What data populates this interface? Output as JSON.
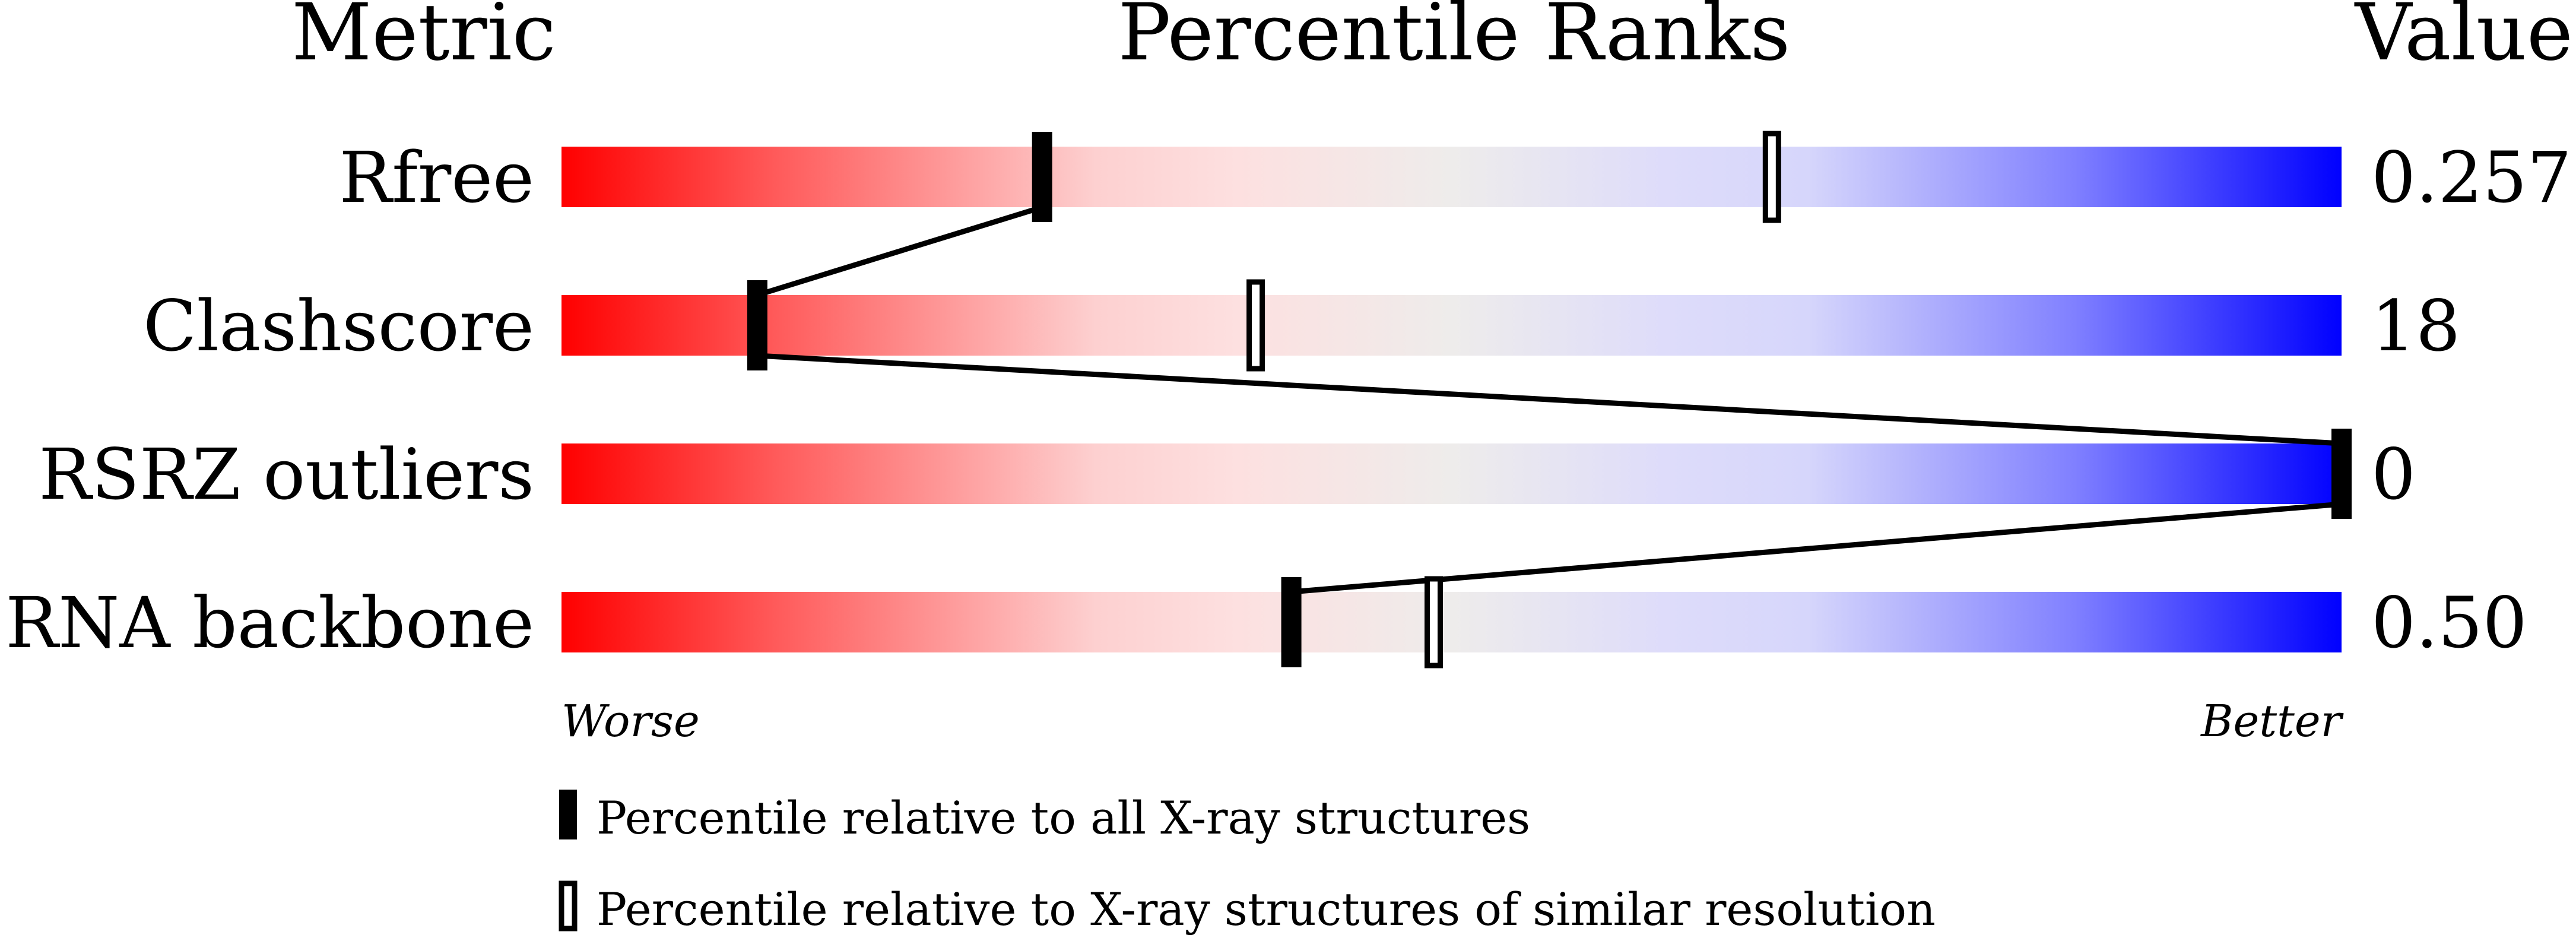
{
  "chart_data": {
    "type": "percentile-slider",
    "headers": {
      "metric": "Metric",
      "ranks": "Percentile Ranks",
      "value": "Value"
    },
    "xlim": [
      0,
      100
    ],
    "metrics": [
      {
        "name": "Rfree",
        "value": "0.257",
        "percentile_all": 27,
        "percentile_similar": 68
      },
      {
        "name": "Clashscore",
        "value": "18",
        "percentile_all": 11,
        "percentile_similar": 39
      },
      {
        "name": "RSRZ outliers",
        "value": "0",
        "percentile_all": 100,
        "percentile_similar": null
      },
      {
        "name": "RNA backbone",
        "value": "0.50",
        "percentile_all": 41,
        "percentile_similar": 49
      }
    ],
    "scale_labels": {
      "left": "Worse",
      "right": "Better"
    },
    "legend": [
      {
        "marker": "filled",
        "label": "Percentile relative to all X-ray structures"
      },
      {
        "marker": "open",
        "label": "Percentile relative to X-ray structures of similar resolution"
      }
    ],
    "colors": {
      "worse": "#ff0000",
      "middle": "#eeeeee",
      "better": "#0000ff",
      "marker": "#000000"
    }
  }
}
